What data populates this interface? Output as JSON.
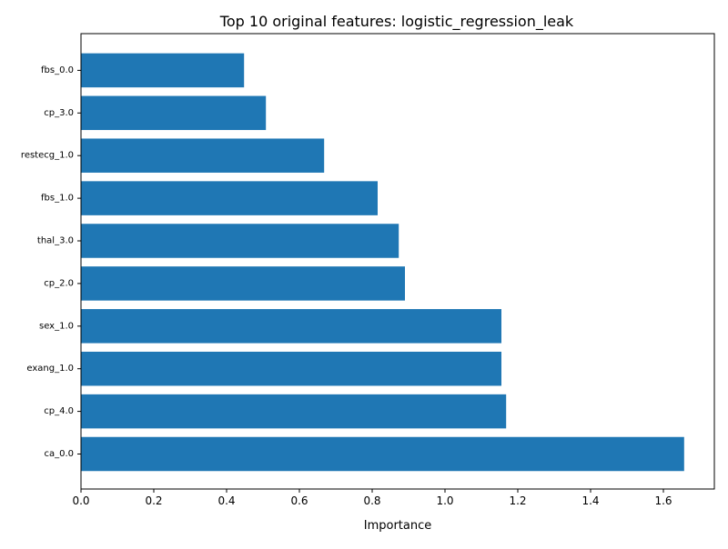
{
  "chart_data": {
    "type": "bar",
    "orientation": "horizontal",
    "title": "Top 10 original features: logistic_regression_leak",
    "xlabel": "Importance",
    "ylabel": "",
    "categories": [
      "ca_0.0",
      "cp_4.0",
      "exang_1.0",
      "sex_1.0",
      "cp_2.0",
      "thal_3.0",
      "fbs_1.0",
      "restecg_1.0",
      "cp_3.0",
      "fbs_0.0"
    ],
    "values": [
      1.657,
      1.168,
      1.155,
      1.155,
      0.89,
      0.873,
      0.815,
      0.668,
      0.508,
      0.448
    ],
    "xlim": [
      0,
      1.74
    ],
    "xticks": [
      0,
      0.2,
      0.4,
      0.6,
      0.8,
      1.0,
      1.2,
      1.4,
      1.6
    ],
    "xtick_labels": [
      "0.0",
      "0.2",
      "0.4",
      "0.6",
      "0.8",
      "1.0",
      "1.2",
      "1.4",
      "1.6"
    ],
    "bar_color": "#1f77b4",
    "grid": false,
    "legend": "none"
  }
}
